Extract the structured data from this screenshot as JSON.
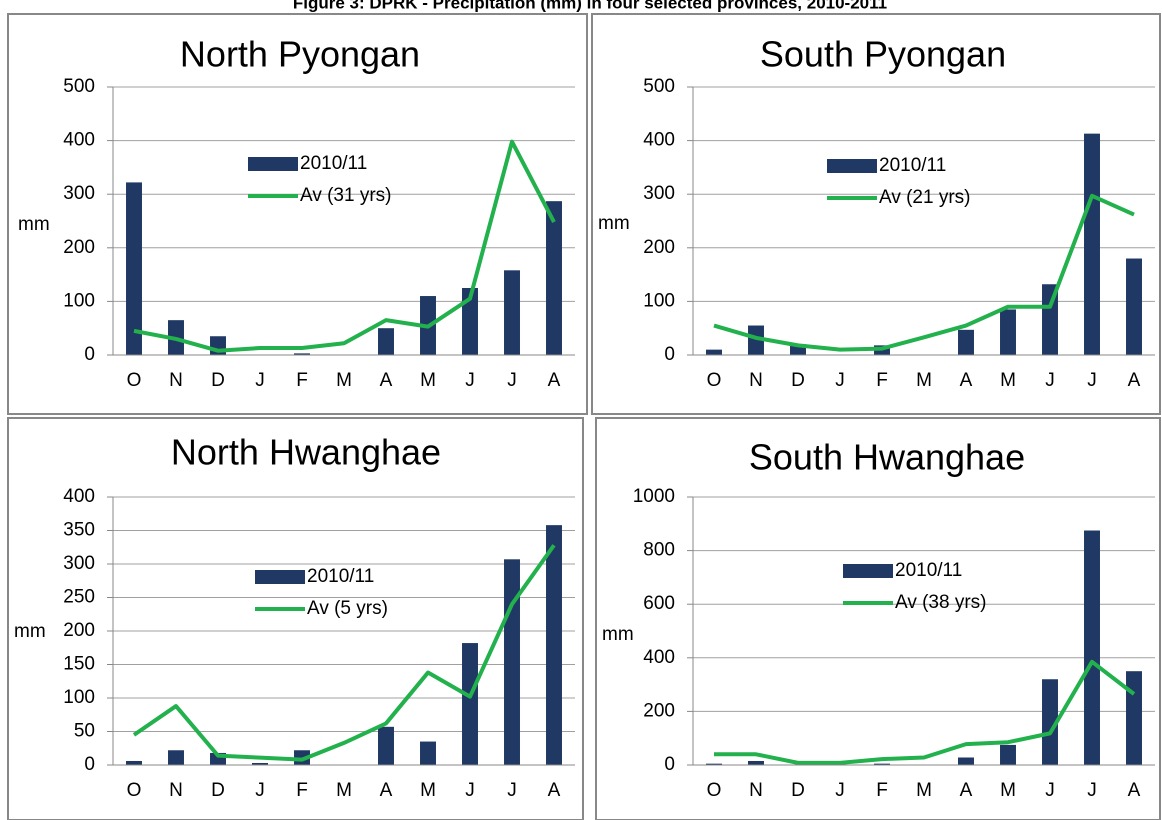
{
  "title": "Figure 3: DPRK - Precipitation (mm) in four selected provinces, 2010-2011",
  "chart_data": [
    {
      "type": "combo",
      "title": "North Pyongan",
      "y_label": "mm",
      "categories": [
        "O",
        "N",
        "D",
        "J",
        "F",
        "M",
        "A",
        "M",
        "J",
        "J",
        "A"
      ],
      "ylim": [
        0,
        500
      ],
      "yticks": [
        0,
        100,
        200,
        300,
        400,
        500
      ],
      "grid": true,
      "series": [
        {
          "name": "2010/11",
          "type": "bar",
          "color": "#1f3864",
          "values": [
            322,
            65,
            35,
            0,
            3,
            0,
            50,
            110,
            125,
            158,
            287
          ]
        },
        {
          "name": "Av (31 yrs)",
          "type": "line",
          "color": "#22b14c",
          "values": [
            45,
            30,
            8,
            13,
            13,
            22,
            65,
            53,
            105,
            398,
            248
          ]
        }
      ]
    },
    {
      "type": "combo",
      "title": "South Pyongan",
      "y_label": "mm",
      "categories": [
        "O",
        "N",
        "D",
        "J",
        "F",
        "M",
        "A",
        "M",
        "J",
        "J",
        "A"
      ],
      "ylim": [
        0,
        500
      ],
      "yticks": [
        0,
        100,
        200,
        300,
        400,
        500
      ],
      "grid": true,
      "series": [
        {
          "name": "2010/11",
          "type": "bar",
          "color": "#1f3864",
          "values": [
            10,
            55,
            20,
            0,
            18,
            0,
            47,
            85,
            132,
            413,
            180
          ]
        },
        {
          "name": "Av (21 yrs)",
          "type": "line",
          "color": "#22b14c",
          "values": [
            55,
            32,
            18,
            10,
            12,
            33,
            55,
            90,
            90,
            297,
            262
          ]
        }
      ]
    },
    {
      "type": "combo",
      "title": "North Hwanghae",
      "y_label": "mm",
      "categories": [
        "O",
        "N",
        "D",
        "J",
        "F",
        "M",
        "A",
        "M",
        "J",
        "J",
        "A"
      ],
      "ylim": [
        0,
        400
      ],
      "yticks": [
        0,
        50,
        100,
        150,
        200,
        250,
        300,
        350,
        400
      ],
      "grid": true,
      "series": [
        {
          "name": "2010/11",
          "type": "bar",
          "color": "#1f3864",
          "values": [
            6,
            22,
            18,
            3,
            22,
            0,
            57,
            35,
            182,
            307,
            358
          ]
        },
        {
          "name": "Av (5 yrs)",
          "type": "line",
          "color": "#22b14c",
          "values": [
            45,
            88,
            14,
            11,
            8,
            33,
            62,
            138,
            102,
            240,
            328
          ]
        }
      ]
    },
    {
      "type": "combo",
      "title": "South Hwanghae",
      "y_label": "mm",
      "categories": [
        "O",
        "N",
        "D",
        "J",
        "F",
        "M",
        "A",
        "M",
        "J",
        "J",
        "A"
      ],
      "ylim": [
        0,
        1000
      ],
      "yticks": [
        0,
        200,
        400,
        600,
        800,
        1000
      ],
      "grid": true,
      "series": [
        {
          "name": "2010/11",
          "type": "bar",
          "color": "#1f3864",
          "values": [
            5,
            15,
            0,
            0,
            5,
            0,
            28,
            75,
            320,
            875,
            350
          ]
        },
        {
          "name": "Av (38 yrs)",
          "type": "line",
          "color": "#22b14c",
          "values": [
            40,
            40,
            8,
            8,
            22,
            28,
            78,
            85,
            118,
            385,
            265
          ]
        }
      ]
    }
  ]
}
